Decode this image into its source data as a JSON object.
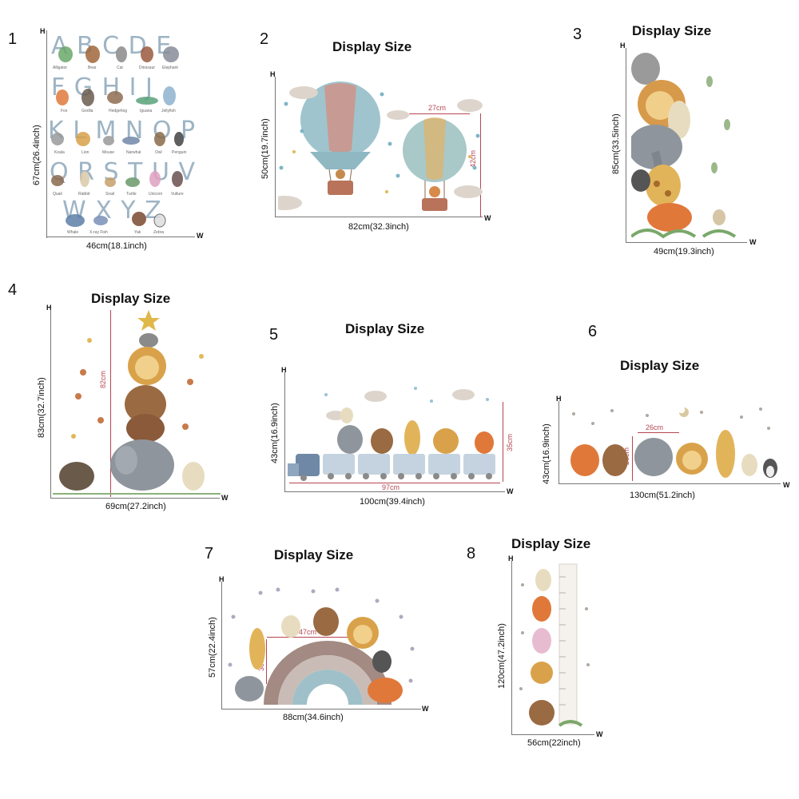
{
  "panels": [
    {
      "number": "1",
      "height": "67cm(26.4inch)",
      "width": "46cm(18.1inch)",
      "axis_h": "H",
      "axis_w": "W",
      "alphabet": [
        {
          "letters": "A B C D E",
          "captions": [
            "Alligator",
            "Bear",
            "Cat",
            "Dinosaur",
            "Elephant"
          ]
        },
        {
          "letters": "F G H I J",
          "captions": [
            "Fox",
            "Gorilla",
            "Hedgehog",
            "Iguana",
            "Jellyfish"
          ]
        },
        {
          "letters": "K L M N O P",
          "captions": [
            "Koala",
            "Lion",
            "Mouse",
            "Narwhal",
            "Owl",
            "Penguin"
          ]
        },
        {
          "letters": "Q R S T U V",
          "captions": [
            "Quail",
            "Rabbit",
            "Snail",
            "Turtle",
            "Unicorn",
            "Vulture"
          ]
        },
        {
          "letters": "W X Y Z",
          "captions": [
            "Whale",
            "X-ray Fish",
            "Yak",
            "Zebra"
          ]
        }
      ]
    },
    {
      "number": "2",
      "title": "Display Size",
      "height": "50cm(19.7inch)",
      "width": "82cm(32.3inch)",
      "axis_h": "H",
      "axis_w": "W",
      "inner_w": "27cm",
      "inner_h": "42cm"
    },
    {
      "number": "3",
      "title": "Display Size",
      "height": "85cm(33.5inch)",
      "width": "49cm(19.3inch)",
      "axis_h": "H",
      "axis_w": "W"
    },
    {
      "number": "4",
      "title": "Display Size",
      "height": "83cm(32.7inch)",
      "width": "69cm(27.2inch)",
      "axis_h": "H",
      "axis_w": "W",
      "inner_h": "82cm"
    },
    {
      "number": "5",
      "title": "Display Size",
      "height": "43cm(16.9inch)",
      "width": "100cm(39.4inch)",
      "axis_h": "H",
      "axis_w": "W",
      "inner_w": "97cm",
      "inner_h": "35cm"
    },
    {
      "number": "6",
      "title": "Display Size",
      "height": "43cm(16.9inch)",
      "width": "130cm(51.2inch)",
      "axis_h": "H",
      "axis_w": "W",
      "inner_w": "26cm",
      "inner_h": "28cm"
    },
    {
      "number": "7",
      "title": "Display Size",
      "height": "57cm(22.4inch)",
      "width": "88cm(34.6inch)",
      "axis_h": "H",
      "axis_w": "W",
      "inner_w": "47cm",
      "inner_h": "30cm"
    },
    {
      "number": "8",
      "title": "Display Size",
      "height": "120cm(47.2inch)",
      "width": "56cm(22inch)",
      "axis_h": "H",
      "axis_w": "W"
    }
  ],
  "colors": {
    "dimension_red": "#b64550",
    "axis_gray": "#777777",
    "letter_blue": "#9db4c4"
  }
}
